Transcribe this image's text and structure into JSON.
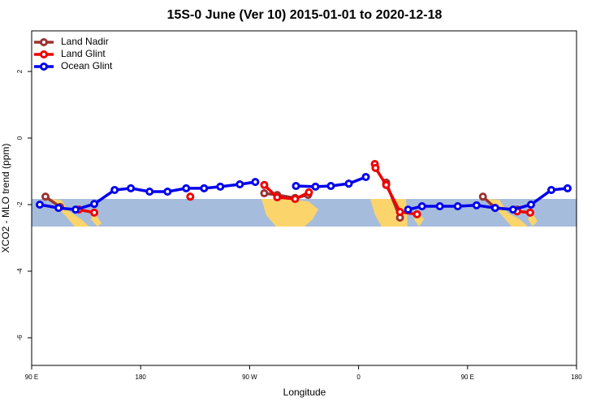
{
  "chart_data": {
    "type": "line",
    "title": "15S-0 June (Ver 10)   2015-01-01 to 2020-12-18",
    "x_label": "Longitude",
    "y_label": "XCO2 - MLO trend (ppm)",
    "xlim": [
      90,
      540
    ],
    "ylim": [
      -6.83,
      3.22
    ],
    "xticks": [
      {
        "value": 90,
        "label": "90 E"
      },
      180,
      {
        "value": 270,
        "label": "90 W"
      },
      {
        "value": 360,
        "label": "0"
      },
      {
        "value": 450,
        "label": "90 E"
      },
      {
        "value": 540,
        "label": "180"
      }
    ],
    "yticks": [
      2,
      0,
      -2,
      -4,
      -6
    ],
    "legend": "top-left",
    "series": [
      {
        "name": "Land Nadir",
        "color": "#993333",
        "x": [
          101.4,
          113.5,
          null,
          282.1,
          292.8,
          307.6,
          318.3,
          null,
          382.8,
          394.2,
          null,
          462.7,
          472.8,
          491.0
        ],
        "values": [
          -1.76,
          -2.07,
          null,
          -1.66,
          -1.71,
          -1.8,
          -1.71,
          null,
          -1.34,
          -2.39,
          null,
          -1.76,
          -2.1,
          -2.15
        ]
      },
      {
        "name": "Land Glint",
        "color": "#ee0000",
        "x": [
          128.9,
          141.7,
          null,
          221.0,
          null,
          282.1,
          292.8,
          307.6,
          319.0,
          null,
          373.4,
          374.0,
          382.8,
          394.2,
          408.3,
          null,
          491.0,
          501.7
        ],
        "values": [
          -2.15,
          -2.24,
          null,
          -1.76,
          null,
          -1.41,
          -1.78,
          -1.83,
          -1.63,
          null,
          -0.78,
          -0.9,
          -1.41,
          -2.22,
          -2.29,
          null,
          -2.2,
          -2.24
        ]
      },
      {
        "name": "Ocean Glint",
        "color": "#0000ee",
        "x": [
          96.7,
          112.2,
          126.3,
          141.7,
          158.5,
          171.9,
          187.4,
          202.2,
          217.6,
          232.4,
          245.8,
          261.9,
          274.7,
          null,
          308.3,
          324.4,
          337.1,
          351.9,
          366.0,
          null,
          400.9,
          412.4,
          427.1,
          441.9,
          457.4,
          472.8,
          487.6,
          502.4,
          519.2,
          532.6
        ],
        "values": [
          -2.0,
          -2.1,
          -2.15,
          -1.98,
          -1.56,
          -1.51,
          -1.61,
          -1.61,
          -1.51,
          -1.51,
          -1.46,
          -1.39,
          -1.32,
          null,
          -1.44,
          -1.46,
          -1.44,
          -1.37,
          -1.17,
          null,
          -2.15,
          -2.05,
          -2.05,
          -2.05,
          -2.02,
          -2.1,
          -2.15,
          -2.0,
          -1.56,
          -1.51
        ]
      }
    ]
  }
}
